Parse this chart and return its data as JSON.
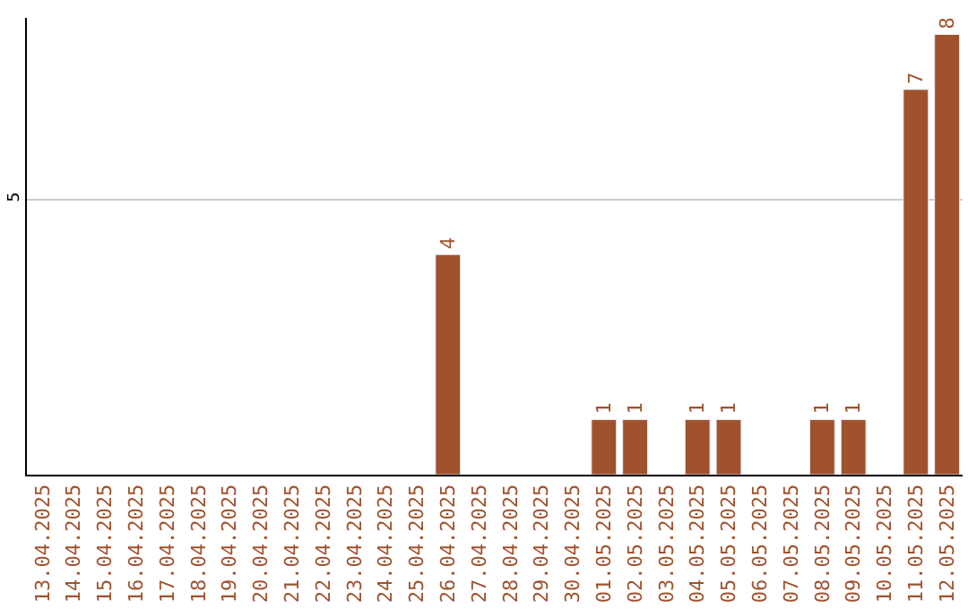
{
  "chart_data": {
    "type": "bar",
    "categories": [
      "13.04.2025",
      "14.04.2025",
      "15.04.2025",
      "16.04.2025",
      "17.04.2025",
      "18.04.2025",
      "19.04.2025",
      "20.04.2025",
      "21.04.2025",
      "22.04.2025",
      "23.04.2025",
      "24.04.2025",
      "25.04.2025",
      "26.04.2025",
      "27.04.2025",
      "28.04.2025",
      "29.04.2025",
      "30.04.2025",
      "01.05.2025",
      "02.05.2025",
      "03.05.2025",
      "04.05.2025",
      "05.05.2025",
      "06.05.2025",
      "07.05.2025",
      "08.05.2025",
      "09.05.2025",
      "10.05.2025",
      "11.05.2025",
      "12.05.2025"
    ],
    "values": [
      null,
      null,
      null,
      null,
      null,
      null,
      null,
      null,
      null,
      null,
      null,
      null,
      null,
      4,
      null,
      null,
      null,
      null,
      1,
      1,
      null,
      1,
      1,
      null,
      null,
      1,
      1,
      null,
      7,
      8
    ],
    "color": "#a0522d",
    "ylim": [
      0,
      8.3
    ],
    "yticks": [
      5
    ],
    "grid": "y",
    "data_labels": true
  }
}
